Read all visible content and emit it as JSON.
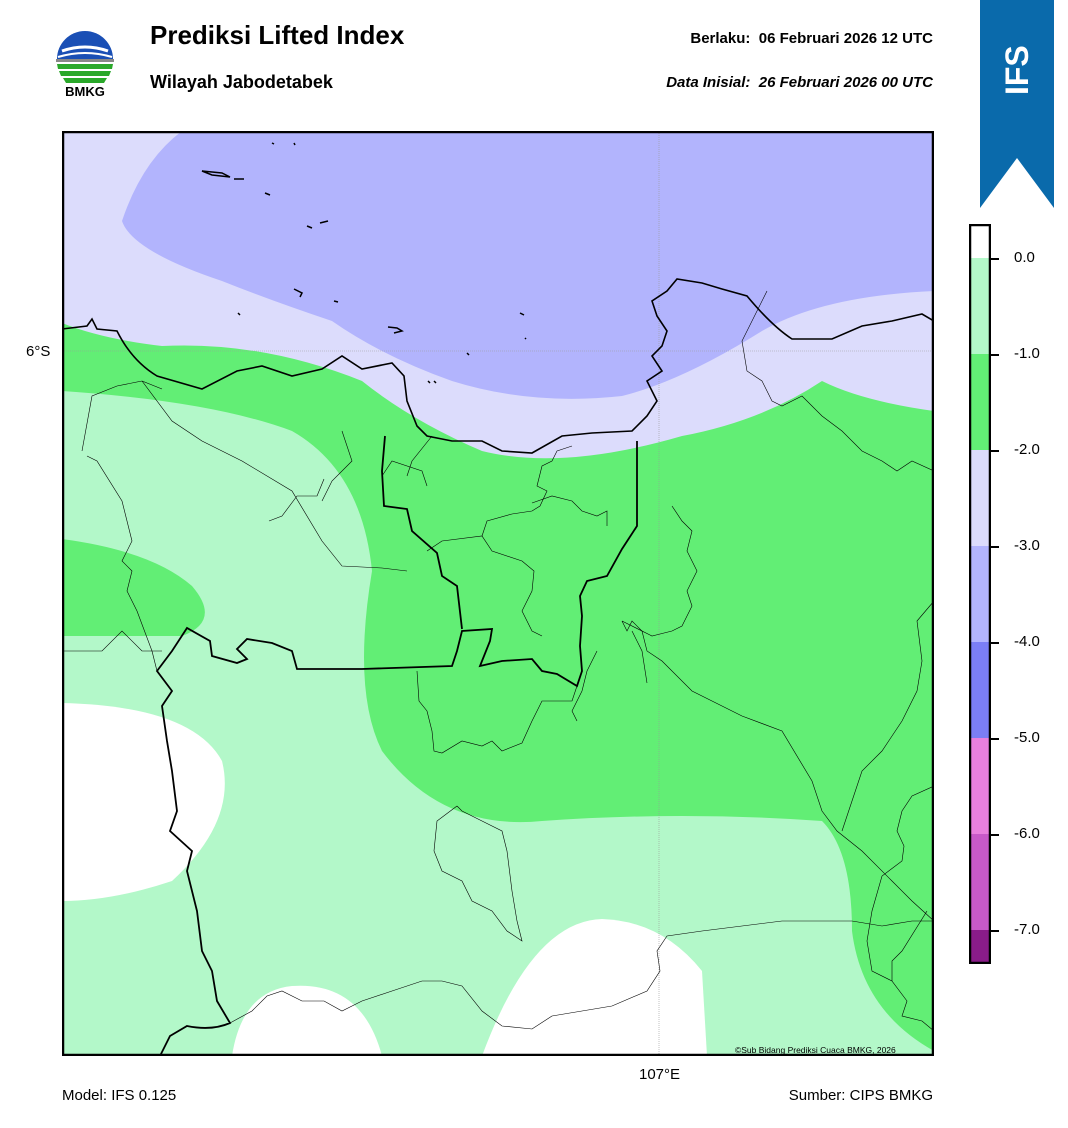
{
  "header": {
    "title": "Prediksi Lifted Index",
    "subtitle": "Wilayah Jabodetabek",
    "valid_label": "Berlaku:",
    "valid_value": "06 Februari 2026 12 UTC",
    "init_label": "Data Inisial:",
    "init_value": "26 Februari 2026 00 UTC"
  },
  "logo": {
    "text": "BMKG",
    "icon": "bmkg-logo-icon"
  },
  "ribbon": {
    "label": "IFS",
    "color": "#0a6aab"
  },
  "map": {
    "lat_label": "6°S",
    "lon_label": "107°E",
    "copyright": "©Sub Bidang Prediksi Cuaca BMKG, 2026"
  },
  "footer": {
    "model": "Model: IFS 0.125",
    "source": "Sumber: CIPS BMKG"
  },
  "colorbar": {
    "labels": [
      "0.0",
      "-1.0",
      "-2.0",
      "-3.0",
      "-4.0",
      "-5.0",
      "-6.0",
      "-7.0"
    ],
    "colors": [
      "#ffffff",
      "#b3f8c9",
      "#62ee75",
      "#dcdcfc",
      "#b2b4fd",
      "#7b7ef5",
      "#e87fdd",
      "#c759c8",
      "#8a1c89"
    ]
  },
  "palette": {
    "white": "#ffffff",
    "light_green": "#b3f8c9",
    "green": "#62ee75",
    "light_lavender": "#dcdcfc",
    "lavender": "#b2b4fd"
  }
}
